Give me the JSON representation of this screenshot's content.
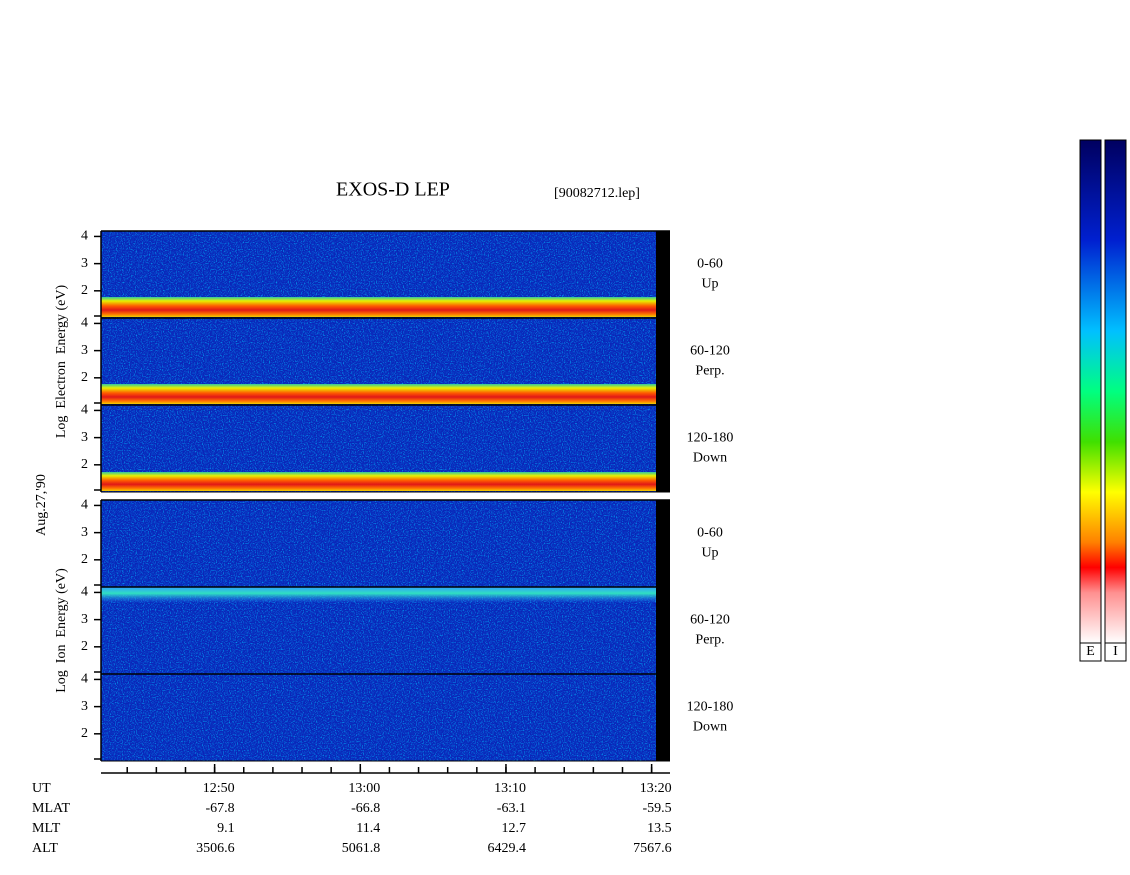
{
  "chart_data": {
    "type": "spectrogram",
    "title": "EXOS-D LEP",
    "subtitle": "[90082712.lep]",
    "date_label": "Aug.27,'90",
    "panels": [
      {
        "ylabel": "Log  Electron  Energy (eV)",
        "subpanels": [
          {
            "range": "0-60",
            "direction": "Up"
          },
          {
            "range": "60-120",
            "direction": "Perp."
          },
          {
            "range": "120-180",
            "direction": "Down"
          }
        ]
      },
      {
        "ylabel": "Log  Ion  Energy (eV)",
        "subpanels": [
          {
            "range": "0-60",
            "direction": "Up"
          },
          {
            "range": "60-120",
            "direction": "Perp."
          },
          {
            "range": "120-180",
            "direction": "Down"
          }
        ]
      }
    ],
    "ylim": [
      1,
      4.2
    ],
    "yticks": [
      2,
      3,
      4
    ],
    "xlabel": "UT",
    "xlim": [
      762.2,
      800.3
    ],
    "xticks": [
      {
        "value": 770,
        "label": "12:50"
      },
      {
        "value": 780,
        "label": "13:00"
      },
      {
        "value": 790,
        "label": "13:10"
      },
      {
        "value": 800,
        "label": "13:20"
      }
    ],
    "ephemeris": [
      {
        "label": "MLAT",
        "values": [
          -67.8,
          -66.8,
          -63.1,
          -59.5
        ]
      },
      {
        "label": "MLT",
        "values": [
          9.1,
          11.4,
          12.7,
          13.5
        ]
      },
      {
        "label": "ALT",
        "values": [
          3506.6,
          5061.8,
          6429.4,
          7567.6
        ]
      }
    ],
    "colorbar_labels": [
      "E",
      "I"
    ]
  }
}
